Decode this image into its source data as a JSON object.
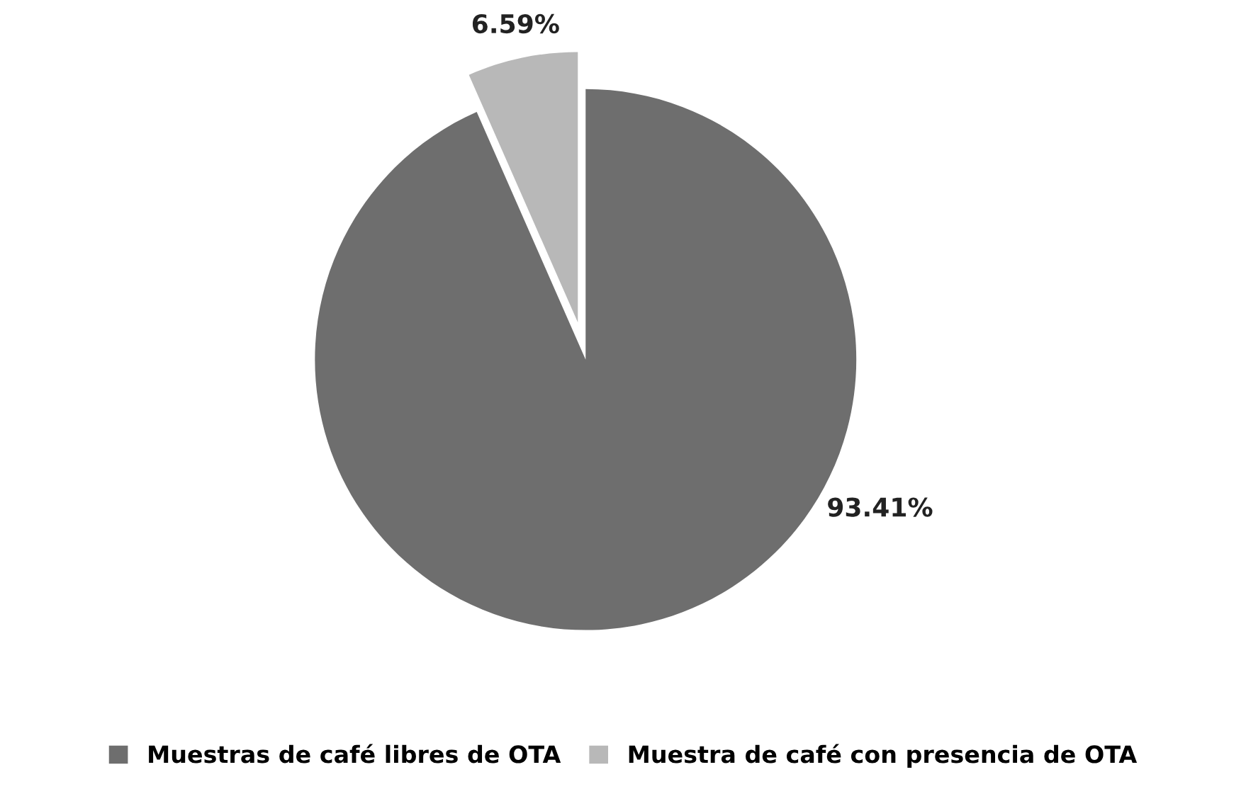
{
  "chart_data": {
    "type": "pie",
    "categories": [
      "Muestras de café libres de OTA",
      "Muestra de café con presencia de OTA"
    ],
    "values": [
      93.41,
      6.59
    ],
    "colors": [
      "#6e6e6e",
      "#b8b8b8"
    ],
    "value_labels": [
      "93.41%",
      "6.59%"
    ],
    "legend": "bottom"
  }
}
